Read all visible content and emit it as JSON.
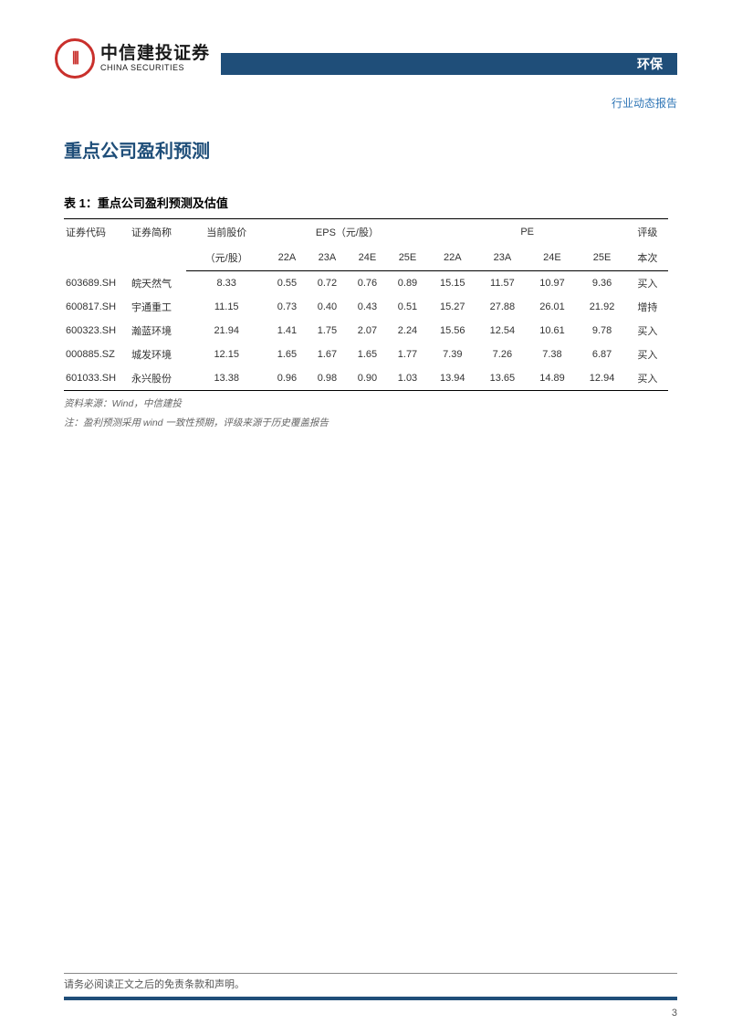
{
  "header": {
    "logo_cn": "中信建投证券",
    "logo_en": "CHINA SECURITIES",
    "bar_label": "环保",
    "bar_color": "#1f4e79",
    "subheader": "行业动态报告",
    "subheader_color": "#2e75b6"
  },
  "section": {
    "title": "重点公司盈利预测",
    "title_color": "#1f4e79"
  },
  "table": {
    "title": "表 1：重点公司盈利预测及估值",
    "group_headers": {
      "code": "证券代码",
      "name": "证券简称",
      "price": "当前股价",
      "eps": "EPS（元/股）",
      "pe": "PE",
      "rating": "评级"
    },
    "sub_headers": {
      "price_unit": "（元/股）",
      "y22a": "22A",
      "y23a": "23A",
      "y24e": "24E",
      "y25e": "25E",
      "rating_sub": "本次"
    },
    "rows": [
      {
        "code": "603689.SH",
        "name": "皖天然气",
        "price": "8.33",
        "eps22": "0.55",
        "eps23": "0.72",
        "eps24": "0.76",
        "eps25": "0.89",
        "pe22": "15.15",
        "pe23": "11.57",
        "pe24": "10.97",
        "pe25": "9.36",
        "rating": "买入"
      },
      {
        "code": "600817.SH",
        "name": "宇通重工",
        "price": "11.15",
        "eps22": "0.73",
        "eps23": "0.40",
        "eps24": "0.43",
        "eps25": "0.51",
        "pe22": "15.27",
        "pe23": "27.88",
        "pe24": "26.01",
        "pe25": "21.92",
        "rating": "增持"
      },
      {
        "code": "600323.SH",
        "name": "瀚蓝环境",
        "price": "21.94",
        "eps22": "1.41",
        "eps23": "1.75",
        "eps24": "2.07",
        "eps25": "2.24",
        "pe22": "15.56",
        "pe23": "12.54",
        "pe24": "10.61",
        "pe25": "9.78",
        "rating": "买入"
      },
      {
        "code": "000885.SZ",
        "name": "城发环境",
        "price": "12.15",
        "eps22": "1.65",
        "eps23": "1.67",
        "eps24": "1.65",
        "eps25": "1.77",
        "pe22": "7.39",
        "pe23": "7.26",
        "pe24": "7.38",
        "pe25": "6.87",
        "rating": "买入"
      },
      {
        "code": "601033.SH",
        "name": "永兴股份",
        "price": "13.38",
        "eps22": "0.96",
        "eps23": "0.98",
        "eps24": "0.90",
        "eps25": "1.03",
        "pe22": "13.94",
        "pe23": "13.65",
        "pe24": "14.89",
        "pe25": "12.94",
        "rating": "买入"
      }
    ],
    "source_note": "资料来源：Wind，中信建投",
    "method_note": "注：盈利预测采用 wind 一致性预期，评级来源于历史覆盖报告"
  },
  "footer": {
    "disclaimer": "请务必阅读正文之后的免责条款和声明。",
    "page": "3"
  }
}
